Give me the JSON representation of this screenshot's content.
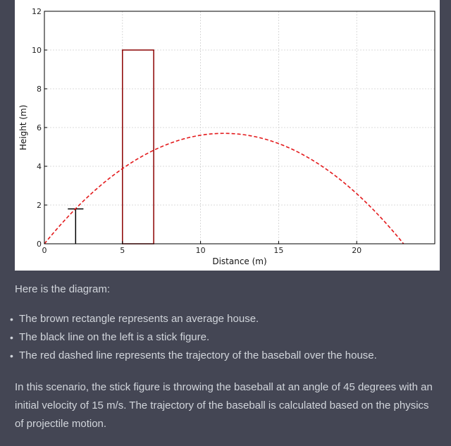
{
  "chart_data": {
    "type": "line",
    "xlabel": "Distance (m)",
    "ylabel": "Height (m)",
    "xlim": [
      0,
      25
    ],
    "ylim": [
      0,
      12
    ],
    "x_ticks": [
      0,
      5,
      10,
      15,
      20
    ],
    "y_ticks": [
      0,
      2,
      4,
      6,
      8,
      10,
      12
    ],
    "grid": true,
    "house": {
      "x": [
        5,
        7
      ],
      "height": 10,
      "color": "#8b0000"
    },
    "stick_figure": {
      "x": 2,
      "height": 1.8,
      "arm_halfwidth": 0.5,
      "color": "#000000"
    },
    "trajectory": {
      "color": "#e31a1c",
      "style": "dashed",
      "launch_height": 0,
      "launch_x": 0,
      "angle_deg": 45,
      "velocity": 15,
      "peak": [
        11.5,
        5.7
      ],
      "landing_x": 23
    }
  },
  "text": {
    "intro": "Here is the diagram:",
    "bullets": [
      "The brown rectangle represents an average house.",
      "The black line on the left is a stick figure.",
      "The red dashed line represents the trajectory of the baseball over the house."
    ],
    "paragraph": "In this scenario, the stick figure is throwing the baseball at an angle of 45 degrees with an initial velocity of 15 m/s. The trajectory of the baseball is calculated based on the physics of projectile motion."
  },
  "colors": {
    "background": "#444654",
    "text": "#d1d5db"
  }
}
